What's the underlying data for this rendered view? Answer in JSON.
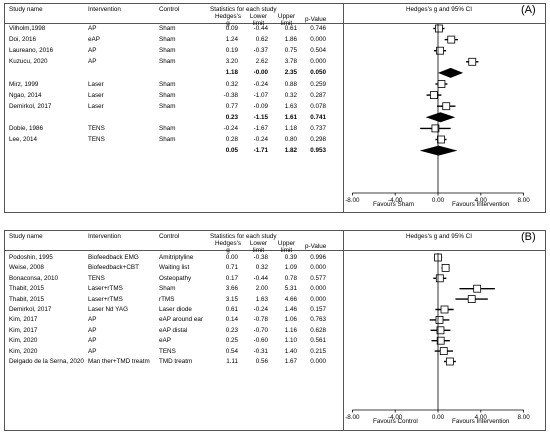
{
  "headers": {
    "study": "Study name",
    "intervention": "Intervention",
    "control": "Control",
    "stats": "Statistics for each study",
    "hedges": "Hedges's g",
    "lower": "Lower limit",
    "upper": "Upper limit",
    "pvalue": "p-Value",
    "plot": "Hedges's g and 95% CI"
  },
  "chart_data": [
    {
      "type": "forest",
      "panel_label": "(A)",
      "x_ticks": [
        "-8.00",
        "-4.00",
        "0.00",
        "4.00",
        "8.00"
      ],
      "xlim": [
        -8,
        8
      ],
      "favours_left": "Favours Sham",
      "favours_right": "Favours Intervention",
      "rows": [
        {
          "study": "Vilholm,1998",
          "intervention": "AP",
          "control": "Sham",
          "g": "0.09",
          "lower": "-0.44",
          "upper": "0.61",
          "p": "0.746",
          "summary": false
        },
        {
          "study": "Doi, 2016",
          "intervention": "eAP",
          "control": "Sham",
          "g": "1.24",
          "lower": "0.62",
          "upper": "1.86",
          "p": "0.000",
          "summary": false
        },
        {
          "study": "Laureano, 2016",
          "intervention": "AP",
          "control": "Sham",
          "g": "0.19",
          "lower": "-0.37",
          "upper": "0.75",
          "p": "0.504",
          "summary": false
        },
        {
          "study": "Kuzucu, 2020",
          "intervention": "AP",
          "control": "Sham",
          "g": "3.20",
          "lower": "2.62",
          "upper": "3.78",
          "p": "0.000",
          "summary": false
        },
        {
          "study": "",
          "intervention": "",
          "control": "",
          "g": "1.18",
          "lower": "-0.00",
          "upper": "2.35",
          "p": "0.050",
          "summary": true
        },
        {
          "study": "Mirz, 1999",
          "intervention": "Laser",
          "control": "Sham",
          "g": "0.32",
          "lower": "-0.24",
          "upper": "0.88",
          "p": "0.259",
          "summary": false
        },
        {
          "study": "Ngao, 2014",
          "intervention": "Laser",
          "control": "Sham",
          "g": "-0.38",
          "lower": "-1.07",
          "upper": "0.32",
          "p": "0.287",
          "summary": false
        },
        {
          "study": "Demirkol, 2017",
          "intervention": "Laser",
          "control": "Sham",
          "g": "0.77",
          "lower": "-0.09",
          "upper": "1.63",
          "p": "0.078",
          "summary": false
        },
        {
          "study": "",
          "intervention": "",
          "control": "",
          "g": "0.23",
          "lower": "-1.15",
          "upper": "1.61",
          "p": "0.741",
          "summary": true
        },
        {
          "study": "Dobie, 1986",
          "intervention": "TENS",
          "control": "Sham",
          "g": "-0.24",
          "lower": "-1.67",
          "upper": "1.18",
          "p": "0.737",
          "summary": false
        },
        {
          "study": "Lee, 2014",
          "intervention": "TENS",
          "control": "Sham",
          "g": "0.28",
          "lower": "-0.24",
          "upper": "0.80",
          "p": "0.298",
          "summary": false
        },
        {
          "study": "",
          "intervention": "",
          "control": "",
          "g": "0.05",
          "lower": "-1.71",
          "upper": "1.82",
          "p": "0.953",
          "summary": true
        }
      ]
    },
    {
      "type": "forest",
      "panel_label": "(B)",
      "x_ticks": [
        "-8.00",
        "-4.00",
        "0.00",
        "4.00",
        "8.00"
      ],
      "xlim": [
        -8,
        8
      ],
      "favours_left": "Favours Control",
      "favours_right": "Favours Intervention",
      "rows": [
        {
          "study": "Podoshin, 1995",
          "intervention": "Biofeedback EMG",
          "control": "Amitriptyline",
          "g": "0.00",
          "lower": "-0.38",
          "upper": "0.39",
          "p": "0.996",
          "summary": false
        },
        {
          "study": "Weise, 2008",
          "intervention": "Biofeedback+CBT",
          "control": "Waiting list",
          "g": "0.71",
          "lower": "0.32",
          "upper": "1.09",
          "p": "0.000",
          "summary": false
        },
        {
          "study": "Bonaconsa, 2010",
          "intervention": "TENS",
          "control": "Osteopathy",
          "g": "0.17",
          "lower": "-0.44",
          "upper": "0.78",
          "p": "0.577",
          "summary": false
        },
        {
          "study": "Thabit, 2015",
          "intervention": "Laser+rTMS",
          "control": "Sham",
          "g": "3.66",
          "lower": "2.00",
          "upper": "5.31",
          "p": "0.000",
          "summary": false
        },
        {
          "study": "Thabit, 2015",
          "intervention": "Laser+rTMS",
          "control": "rTMS",
          "g": "3.15",
          "lower": "1.63",
          "upper": "4.66",
          "p": "0.000",
          "summary": false
        },
        {
          "study": "Demirkol, 2017",
          "intervention": "Laser Nd YAG",
          "control": "Laser diode",
          "g": "0.61",
          "lower": "-0.24",
          "upper": "1.46",
          "p": "0.157",
          "summary": false
        },
        {
          "study": "Kim, 2017",
          "intervention": "AP",
          "control": "eAP around ear",
          "g": "0.14",
          "lower": "-0.78",
          "upper": "1.06",
          "p": "0.763",
          "summary": false
        },
        {
          "study": "Kim, 2017",
          "intervention": "AP",
          "control": "eAP distal",
          "g": "0.23",
          "lower": "-0.70",
          "upper": "1.16",
          "p": "0.628",
          "summary": false
        },
        {
          "study": "Kim, 2020",
          "intervention": "AP",
          "control": "eAP",
          "g": "0.25",
          "lower": "-0.60",
          "upper": "1.10",
          "p": "0.561",
          "summary": false
        },
        {
          "study": "Kim, 2020",
          "intervention": "AP",
          "control": "TENS",
          "g": "0.54",
          "lower": "-0.31",
          "upper": "1.40",
          "p": "0.215",
          "summary": false
        },
        {
          "study": "Delgado de la Serna, 2020",
          "intervention": "Man ther+TMD treatm",
          "control": "TMD treatm",
          "g": "1.11",
          "lower": "0.56",
          "upper": "1.67",
          "p": "0.000",
          "summary": false
        }
      ]
    }
  ]
}
